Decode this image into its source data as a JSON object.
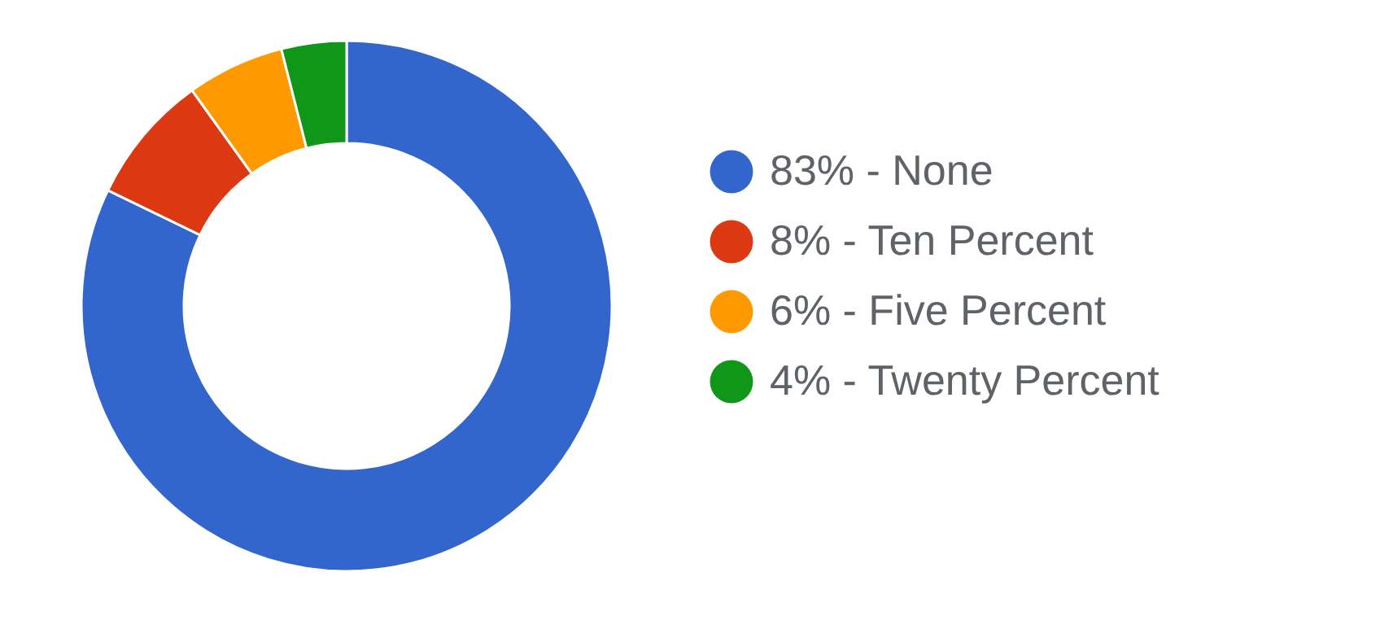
{
  "chart_data": {
    "type": "donut",
    "categories": [
      "83% - None",
      "8% - Ten Percent",
      "6% - Five Percent",
      "4% - Twenty Percent"
    ],
    "values": [
      83,
      8,
      6,
      4
    ],
    "colors": [
      "#3366cc",
      "#dc3912",
      "#ff9900",
      "#109618"
    ],
    "legend": "right"
  }
}
